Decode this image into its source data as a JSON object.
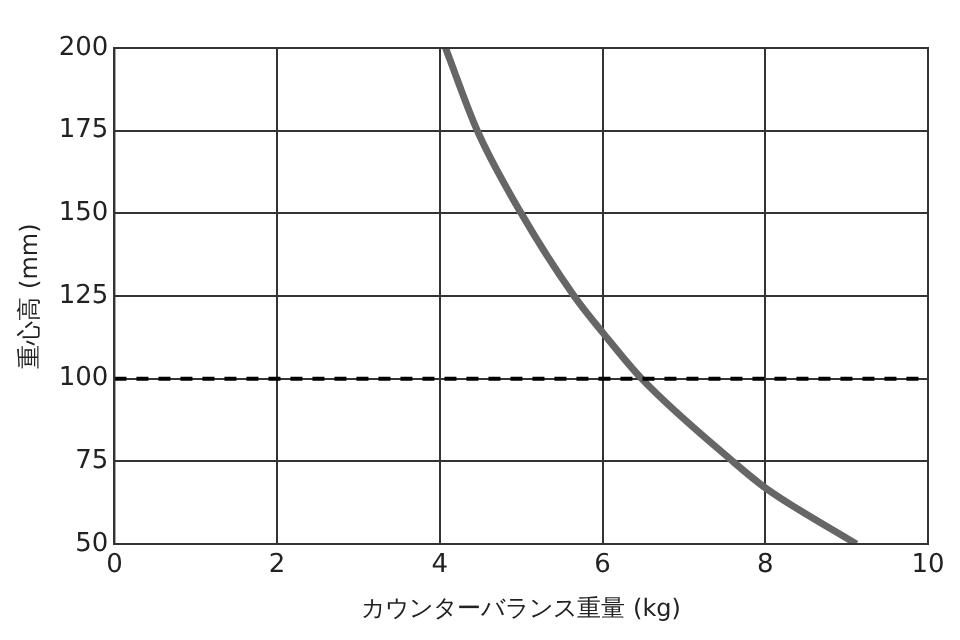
{
  "chart_data": {
    "type": "line",
    "xlabel": "カウンターバランス重量 (kg)",
    "ylabel": "重心高 (mm)",
    "series": [
      {
        "color": "#666666",
        "x": [
          4.07,
          4.46,
          5,
          5.65,
          6,
          6.48,
          7.6,
          8,
          9.12
        ],
        "values": [
          200,
          175,
          150,
          125,
          114,
          100,
          75,
          67,
          50
        ]
      }
    ],
    "xlim": [
      0,
      10
    ],
    "xticks": [
      0,
      2,
      4,
      6,
      8,
      10
    ],
    "ylim": [
      50,
      200
    ],
    "yticks": [
      50,
      75,
      100,
      125,
      150,
      175,
      200
    ],
    "grid": true,
    "legend": false,
    "marker": "none",
    "line_style": "solid",
    "ref_lines": [
      {
        "axis": "y",
        "value": 100,
        "color": "#000000",
        "line_style": "dashed"
      }
    ]
  }
}
